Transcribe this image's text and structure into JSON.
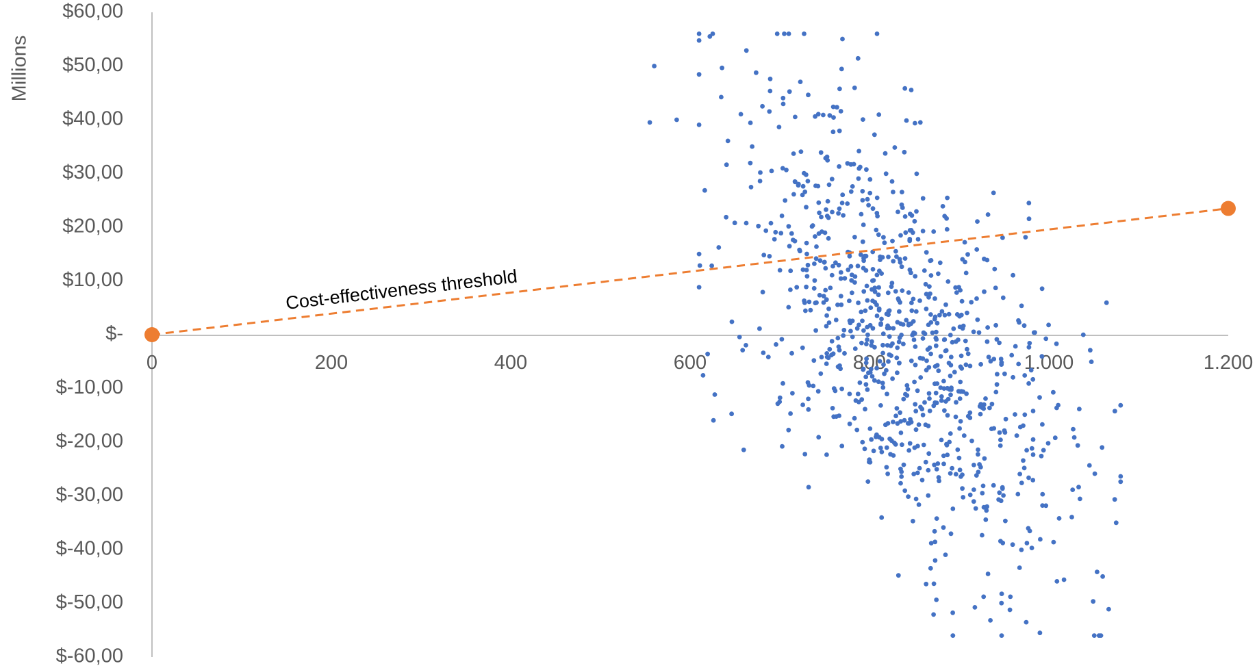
{
  "chart_data": {
    "type": "scatter",
    "ylabel": "Millions",
    "xlim": [
      0,
      1200
    ],
    "ylim": [
      -60,
      60
    ],
    "x_ticks": [
      0,
      200,
      400,
      600,
      800,
      1000,
      1200
    ],
    "x_tick_labels": [
      "0",
      "200",
      "400",
      "600",
      "800",
      "1.000",
      "1.200"
    ],
    "y_ticks": [
      60,
      50,
      40,
      30,
      20,
      10,
      0,
      -10,
      -20,
      -30,
      -40,
      -50,
      -60
    ],
    "y_tick_labels": [
      "$60,00",
      "$50,00",
      "$40,00",
      "$30,00",
      "$20,00",
      "$10,00",
      "$-",
      "$-10,00",
      "$-20,00",
      "$-30,00",
      "$-40,00",
      "$-50,00",
      "$-60,00"
    ],
    "grid": false,
    "colors": {
      "points": "#4472c4",
      "threshold": "#ed7d31",
      "axis": "#bfbfbf"
    },
    "threshold": {
      "label": "Cost-effectiveness threshold",
      "points": [
        [
          0,
          0
        ],
        [
          1200,
          23.5
        ]
      ]
    },
    "scatter_summary": {
      "n_points": 900,
      "x_range_observed": [
        555,
        1080
      ],
      "y_range_observed": [
        -56,
        56
      ],
      "x_center": 830,
      "note_visible_extremes": [
        [
          555,
          39.5
        ],
        [
          560,
          50
        ],
        [
          585,
          40
        ],
        [
          622,
          55.5
        ],
        [
          710,
          56
        ],
        [
          990,
          -55.5
        ],
        [
          1058,
          -56
        ],
        [
          1075,
          -35
        ],
        [
          1060,
          -45
        ]
      ]
    }
  }
}
